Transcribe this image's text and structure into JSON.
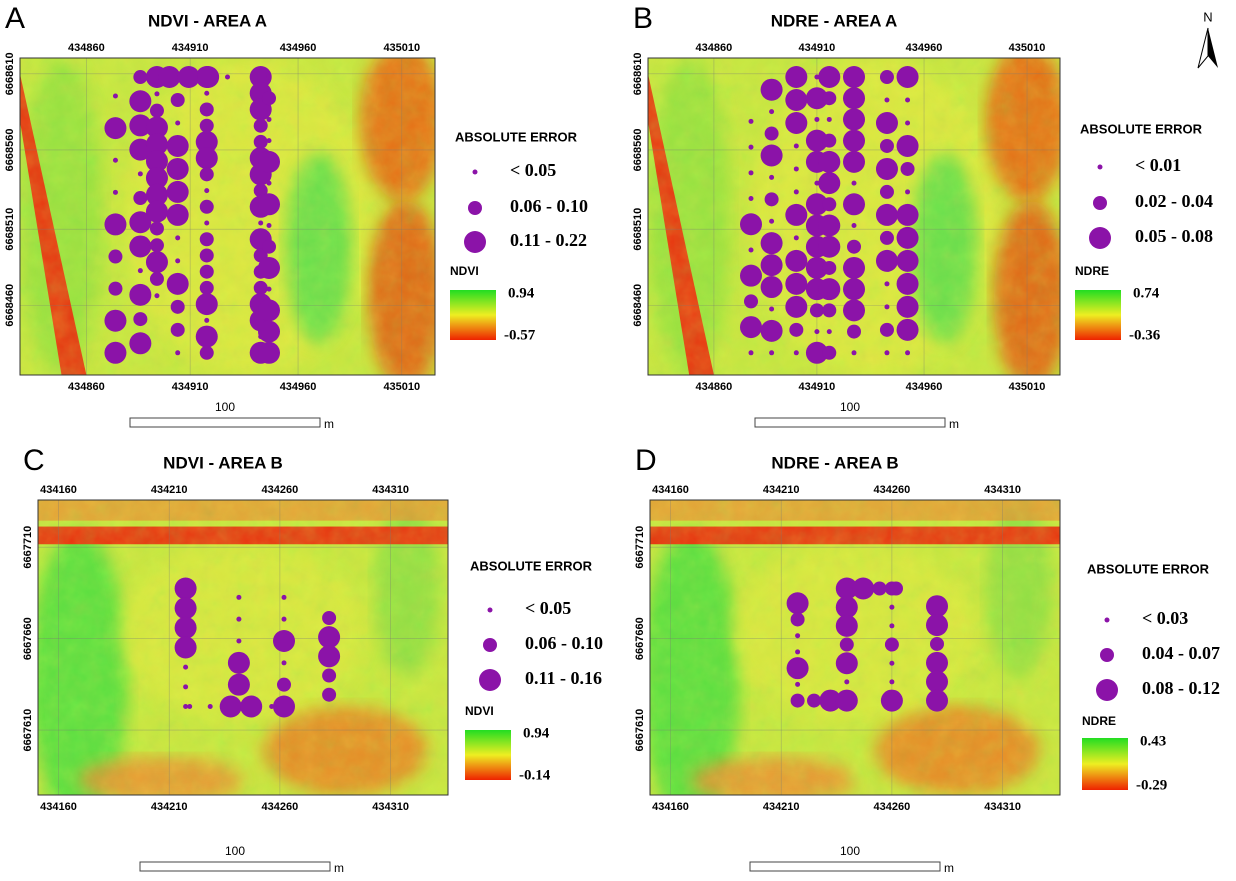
{
  "north": "N",
  "panels": [
    {
      "letter": "A",
      "title": "NDVI - AREA A",
      "x_labels": [
        "434860",
        "434910",
        "434960",
        "435010"
      ],
      "y_labels": [
        "6668610",
        "6668560",
        "6668510",
        "6668460"
      ],
      "legend": {
        "title": "ABSOLUTE ERROR",
        "items": [
          "< 0.05",
          "0.06 - 0.10",
          "0.11 - 0.22"
        ]
      },
      "colorbar": {
        "title": "NDVI",
        "max": "0.94",
        "min": "-0.57"
      },
      "scale": {
        "label": "100",
        "unit": "m"
      }
    },
    {
      "letter": "B",
      "title": "NDRE - AREA A",
      "x_labels": [
        "434860",
        "434910",
        "434960",
        "435010"
      ],
      "y_labels": [
        "6668610",
        "6668560",
        "6668510",
        "6668460"
      ],
      "legend": {
        "title": "ABSOLUTE ERROR",
        "items": [
          "< 0.01",
          "0.02 - 0.04",
          "0.05 - 0.08"
        ]
      },
      "colorbar": {
        "title": "NDRE",
        "max": "0.74",
        "min": "-0.36"
      },
      "scale": {
        "label": "100",
        "unit": "m"
      }
    },
    {
      "letter": "C",
      "title": "NDVI - AREA B",
      "x_labels": [
        "434160",
        "434210",
        "434260",
        "434310"
      ],
      "y_labels": [
        "6667710",
        "6667660",
        "6667610"
      ],
      "legend": {
        "title": "ABSOLUTE ERROR",
        "items": [
          "< 0.05",
          "0.06 - 0.10",
          "0.11 - 0.16"
        ]
      },
      "colorbar": {
        "title": "NDVI",
        "max": "0.94",
        "min": "-0.14"
      },
      "scale": {
        "label": "100",
        "unit": "m"
      }
    },
    {
      "letter": "D",
      "title": "NDRE - AREA B",
      "x_labels": [
        "434160",
        "434210",
        "434260",
        "434310"
      ],
      "y_labels": [
        "6667710",
        "6667660",
        "6667610"
      ],
      "legend": {
        "title": "ABSOLUTE ERROR",
        "items": [
          "< 0.03",
          "0.04 - 0.07",
          "0.08 - 0.12"
        ]
      },
      "colorbar": {
        "title": "NDRE",
        "max": "0.43",
        "min": "-0.29"
      },
      "scale": {
        "label": "100",
        "unit": "m"
      }
    }
  ]
}
